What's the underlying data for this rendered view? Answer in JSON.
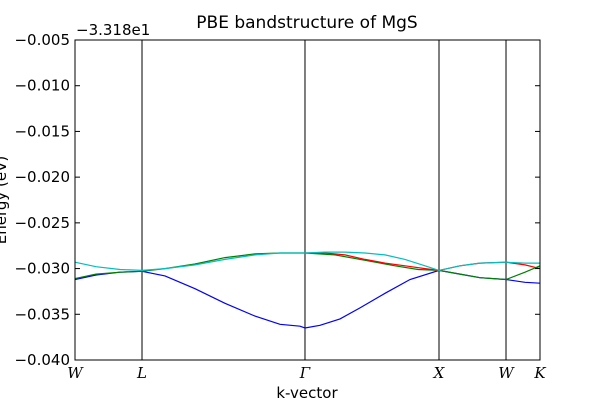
{
  "chart_data": {
    "type": "line",
    "title": "PBE bandstructure of MgS",
    "xlabel": "k-vector",
    "ylabel": "Energy (eV)",
    "y_offset_label": "−3.318e1",
    "ylim": [
      -0.04,
      -0.005
    ],
    "yticks": [
      -0.005,
      -0.01,
      -0.015,
      -0.02,
      -0.025,
      -0.03,
      -0.035,
      -0.04
    ],
    "ytick_labels": [
      "−0.005",
      "−0.010",
      "−0.015",
      "−0.020",
      "−0.025",
      "−0.030",
      "−0.035",
      "−0.040"
    ],
    "xlim": [
      0,
      1
    ],
    "kpoints": [
      {
        "label": "W",
        "x": 0.0
      },
      {
        "label": "L",
        "x": 0.1441
      },
      {
        "label": "Γ",
        "x": 0.4946
      },
      {
        "label": "X",
        "x": 0.7828
      },
      {
        "label": "W",
        "x": 0.9269
      },
      {
        "label": "K",
        "x": 1.0
      }
    ],
    "grid": false,
    "series": [
      {
        "color": "#0000ff",
        "x": [
          0.0,
          0.0452,
          0.0968,
          0.1441,
          0.1935,
          0.2581,
          0.3226,
          0.3871,
          0.4409,
          0.4839,
          0.4946,
          0.5269,
          0.5699,
          0.6129,
          0.6667,
          0.7204,
          0.7828,
          0.828,
          0.871,
          0.9269,
          0.9677,
          1.0
        ],
        "y": [
          -0.0312,
          -0.0307,
          -0.0304,
          -0.0303,
          -0.0308,
          -0.0322,
          -0.0338,
          -0.0352,
          -0.0361,
          -0.0363,
          -0.0365,
          -0.0362,
          -0.0355,
          -0.0343,
          -0.0327,
          -0.0312,
          -0.0302,
          -0.0306,
          -0.031,
          -0.0312,
          -0.0315,
          -0.0316
        ]
      },
      {
        "color": "#008000",
        "x": [
          0.0,
          0.0452,
          0.0968,
          0.1441,
          0.1935,
          0.2581,
          0.3226,
          0.3871,
          0.4409,
          0.4946,
          0.5591,
          0.6237,
          0.6882,
          0.7376,
          0.7828,
          0.828,
          0.871,
          0.9269,
          0.9677,
          1.0
        ],
        "y": [
          -0.0311,
          -0.0306,
          -0.0304,
          -0.0303,
          -0.03,
          -0.0295,
          -0.0288,
          -0.0284,
          -0.0283,
          -0.0283,
          -0.0285,
          -0.0291,
          -0.0297,
          -0.0301,
          -0.0302,
          -0.0306,
          -0.031,
          -0.0312,
          -0.0304,
          -0.0297
        ]
      },
      {
        "color": "#ff0000",
        "x": [
          0.4946,
          0.5376,
          0.5806,
          0.6237,
          0.6667,
          0.7097,
          0.7527,
          0.7828,
          0.828,
          0.871,
          0.9269,
          0.9677,
          1.0
        ],
        "y": [
          -0.0283,
          -0.0283,
          -0.0285,
          -0.029,
          -0.0294,
          -0.0297,
          -0.03,
          -0.0302,
          -0.0297,
          -0.0294,
          -0.0293,
          -0.0296,
          -0.03
        ]
      },
      {
        "color": "#00bfbf",
        "x": [
          0.0,
          0.0452,
          0.0968,
          0.1441,
          0.1935,
          0.2581,
          0.3226,
          0.3871,
          0.4409,
          0.4946,
          0.5376,
          0.5806,
          0.6237,
          0.6667,
          0.7097,
          0.7527,
          0.7828,
          0.828,
          0.871,
          0.9269,
          0.9677,
          1.0
        ],
        "y": [
          -0.0293,
          -0.0298,
          -0.0301,
          -0.0302,
          -0.03,
          -0.0296,
          -0.029,
          -0.0285,
          -0.0283,
          -0.0283,
          -0.0282,
          -0.0282,
          -0.0283,
          -0.0285,
          -0.029,
          -0.0297,
          -0.0302,
          -0.0297,
          -0.0294,
          -0.0293,
          -0.0294,
          -0.0294
        ]
      }
    ]
  }
}
